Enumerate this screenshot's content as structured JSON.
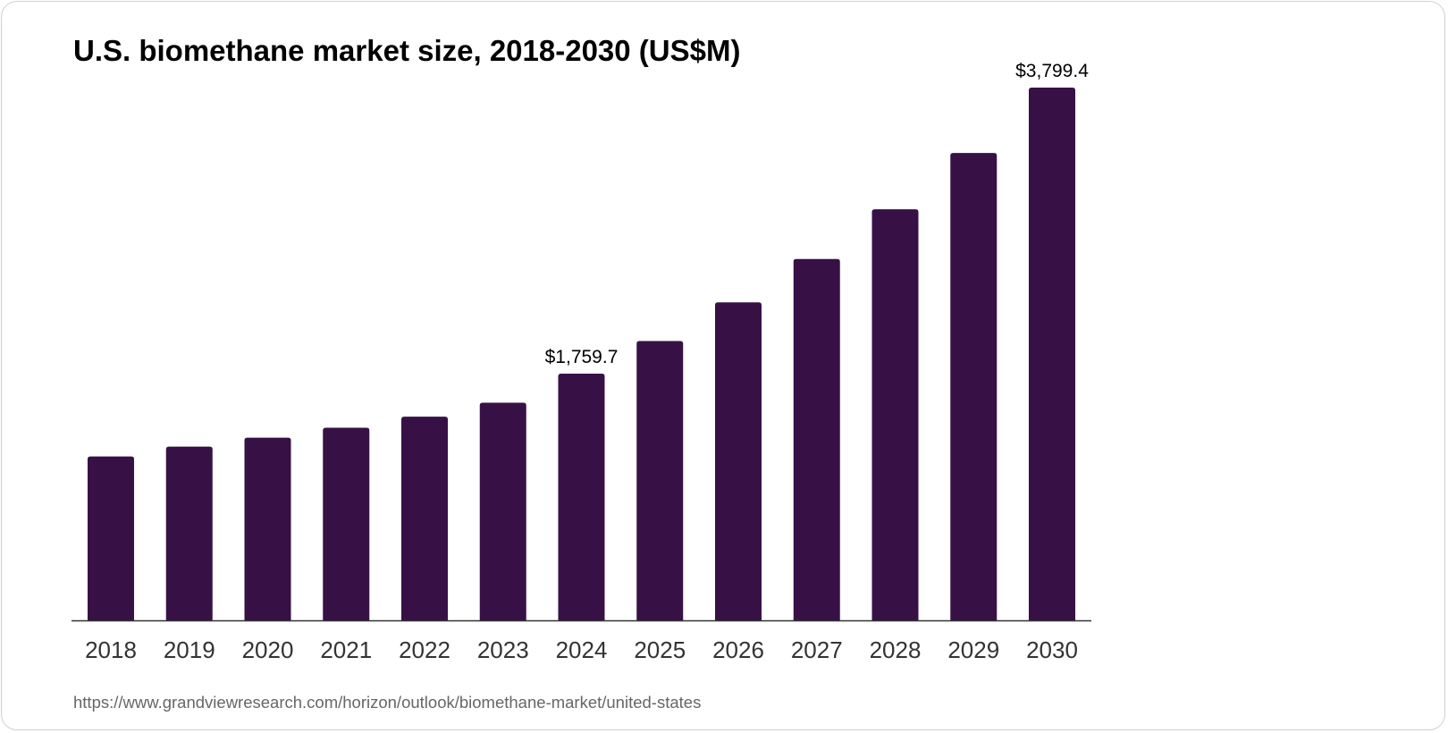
{
  "chart_data": {
    "type": "bar",
    "title": "U.S. biomethane market size, 2018-2030 (US$M)",
    "categories": [
      "2018",
      "2019",
      "2020",
      "2021",
      "2022",
      "2023",
      "2024",
      "2025",
      "2026",
      "2027",
      "2028",
      "2029",
      "2030"
    ],
    "values": [
      1169,
      1239,
      1303,
      1374,
      1453,
      1552,
      1759.7,
      1992,
      2268,
      2577,
      2932,
      3333,
      3799.4
    ],
    "data_labels": {
      "2024": "$1,759.7",
      "2030": "$3,799.4"
    },
    "xlabel": "",
    "ylabel": "",
    "ylim": [
      0,
      3799.4
    ],
    "grid": false,
    "bar_color": "#371146"
  },
  "source": "https://www.grandviewresearch.com/horizon/outlook/biomethane-market/united-states"
}
